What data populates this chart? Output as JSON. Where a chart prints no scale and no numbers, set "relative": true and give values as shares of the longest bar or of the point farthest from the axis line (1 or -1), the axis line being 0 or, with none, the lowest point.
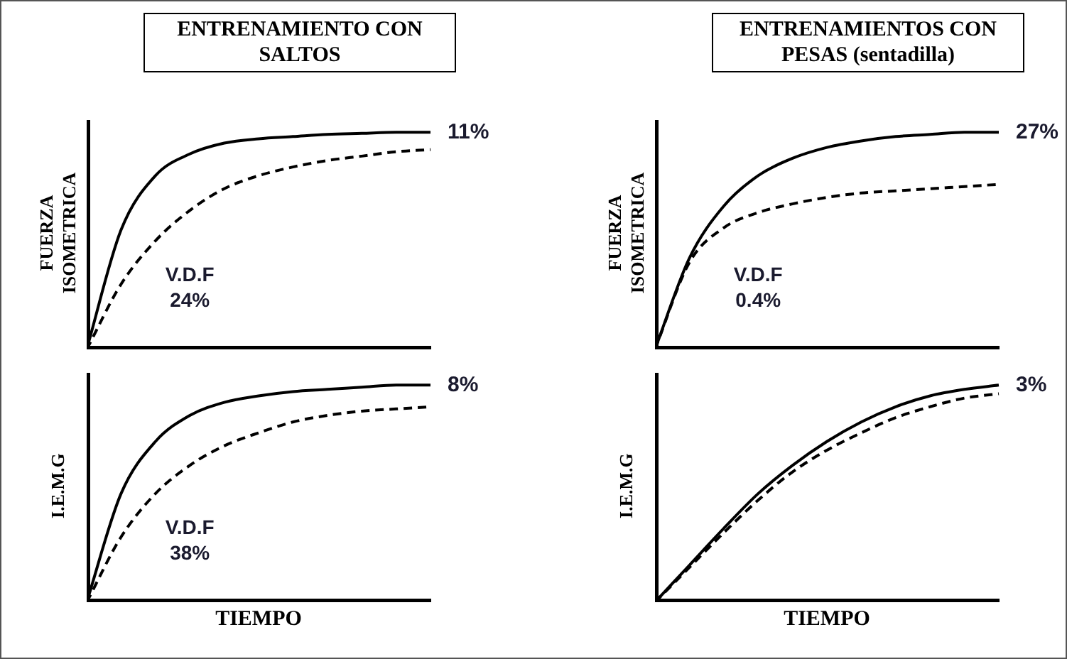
{
  "chart_data": [
    {
      "type": "line",
      "title": "ENTRENAMIENTO CON SALTOS",
      "ylabel": "FUERZA ISOMETRICA",
      "relative": true,
      "tick_labels": false,
      "marker": "none",
      "categories": [
        null,
        null,
        null,
        null,
        null,
        null,
        null,
        null,
        null,
        null,
        null
      ],
      "series": [
        {
          "color": "#000000",
          "line_style": "solid",
          "values": [
            0,
            0.55,
            0.8,
            0.9,
            0.95,
            0.97,
            0.98,
            0.99,
            0.995,
            1,
            1
          ]
        },
        {
          "color": "#000000",
          "line_style": "dashed",
          "values": [
            0,
            0.3,
            0.5,
            0.64,
            0.74,
            0.8,
            0.84,
            0.87,
            0.89,
            0.91,
            0.92
          ]
        }
      ],
      "annotations": [
        "11%",
        "V.D.F",
        "24%"
      ]
    },
    {
      "type": "line",
      "title": "ENTRENAMIENTOS CON PESAS (sentadilla)",
      "ylabel": "FUERZA ISOMETRICA",
      "relative": true,
      "tick_labels": false,
      "marker": "none",
      "categories": [
        null,
        null,
        null,
        null,
        null,
        null,
        null,
        null,
        null,
        null,
        null
      ],
      "series": [
        {
          "color": "#000000",
          "line_style": "solid",
          "values": [
            0,
            0.42,
            0.66,
            0.8,
            0.88,
            0.93,
            0.96,
            0.98,
            0.99,
            1,
            1
          ]
        },
        {
          "color": "#000000",
          "line_style": "dashed",
          "values": [
            0,
            0.4,
            0.56,
            0.63,
            0.67,
            0.7,
            0.72,
            0.73,
            0.74,
            0.75,
            0.76
          ]
        }
      ],
      "annotations": [
        "27%",
        "V.D.F",
        "0.4%"
      ]
    },
    {
      "type": "line",
      "ylabel": "I.E.M.G",
      "xlabel": "TIEMPO",
      "relative": true,
      "tick_labels": false,
      "marker": "none",
      "categories": [
        null,
        null,
        null,
        null,
        null,
        null,
        null,
        null,
        null,
        null,
        null
      ],
      "series": [
        {
          "color": "#000000",
          "line_style": "solid",
          "values": [
            0,
            0.5,
            0.74,
            0.86,
            0.92,
            0.95,
            0.97,
            0.98,
            0.99,
            1,
            1
          ]
        },
        {
          "color": "#000000",
          "line_style": "dashed",
          "values": [
            0,
            0.3,
            0.5,
            0.63,
            0.72,
            0.78,
            0.83,
            0.86,
            0.88,
            0.89,
            0.9
          ]
        }
      ],
      "annotations": [
        "8%",
        "V.D.F",
        "38%"
      ]
    },
    {
      "type": "line",
      "ylabel": "I.E.M.G",
      "xlabel": "TIEMPO",
      "relative": true,
      "tick_labels": false,
      "marker": "none",
      "categories": [
        null,
        null,
        null,
        null,
        null,
        null,
        null,
        null,
        null,
        null,
        null
      ],
      "series": [
        {
          "color": "#000000",
          "line_style": "solid",
          "values": [
            0,
            0.17,
            0.34,
            0.5,
            0.63,
            0.74,
            0.83,
            0.9,
            0.95,
            0.98,
            1
          ]
        },
        {
          "color": "#000000",
          "line_style": "dashed",
          "values": [
            0,
            0.16,
            0.32,
            0.47,
            0.6,
            0.7,
            0.78,
            0.85,
            0.9,
            0.94,
            0.96
          ]
        }
      ],
      "annotations": [
        "3%"
      ]
    }
  ]
}
